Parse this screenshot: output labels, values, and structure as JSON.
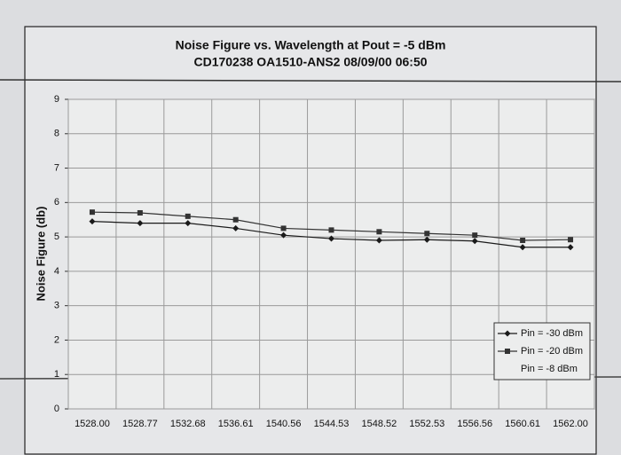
{
  "chart_data": {
    "type": "line",
    "title": "Noise Figure vs. Wavelength at Pout = -5 dBm",
    "subtitle": "CD170238 OA1510-ANS2 08/09/00 06:50",
    "y_label": "Noise Figure (db)",
    "categories": [
      "1528.00",
      "1528.77",
      "1532.68",
      "1536.61",
      "1540.56",
      "1544.53",
      "1548.52",
      "1552.53",
      "1556.56",
      "1560.61",
      "1562.00"
    ],
    "series": [
      {
        "name": "Pin = -30 dBm",
        "color": "#1a1a1a",
        "marker": "diamond",
        "values": [
          5.45,
          5.4,
          5.4,
          5.25,
          5.05,
          4.95,
          4.9,
          4.92,
          4.88,
          4.7,
          4.7
        ]
      },
      {
        "name": "Pin = -20 dBm",
        "color": "#333333",
        "marker": "square",
        "values": [
          5.72,
          5.7,
          5.6,
          5.5,
          5.25,
          5.2,
          5.15,
          5.1,
          5.05,
          4.9,
          4.92
        ]
      },
      {
        "name": "Pin = -8 dBm",
        "color": "#000000",
        "values": [
          null,
          null,
          null,
          null,
          null,
          null,
          null,
          null,
          null,
          null,
          null
        ]
      }
    ],
    "ylim": [
      0,
      9
    ],
    "yticks": [
      0,
      1,
      2,
      3,
      4,
      5,
      6,
      7,
      8,
      9
    ],
    "grid": true,
    "legend": "lower-right"
  }
}
